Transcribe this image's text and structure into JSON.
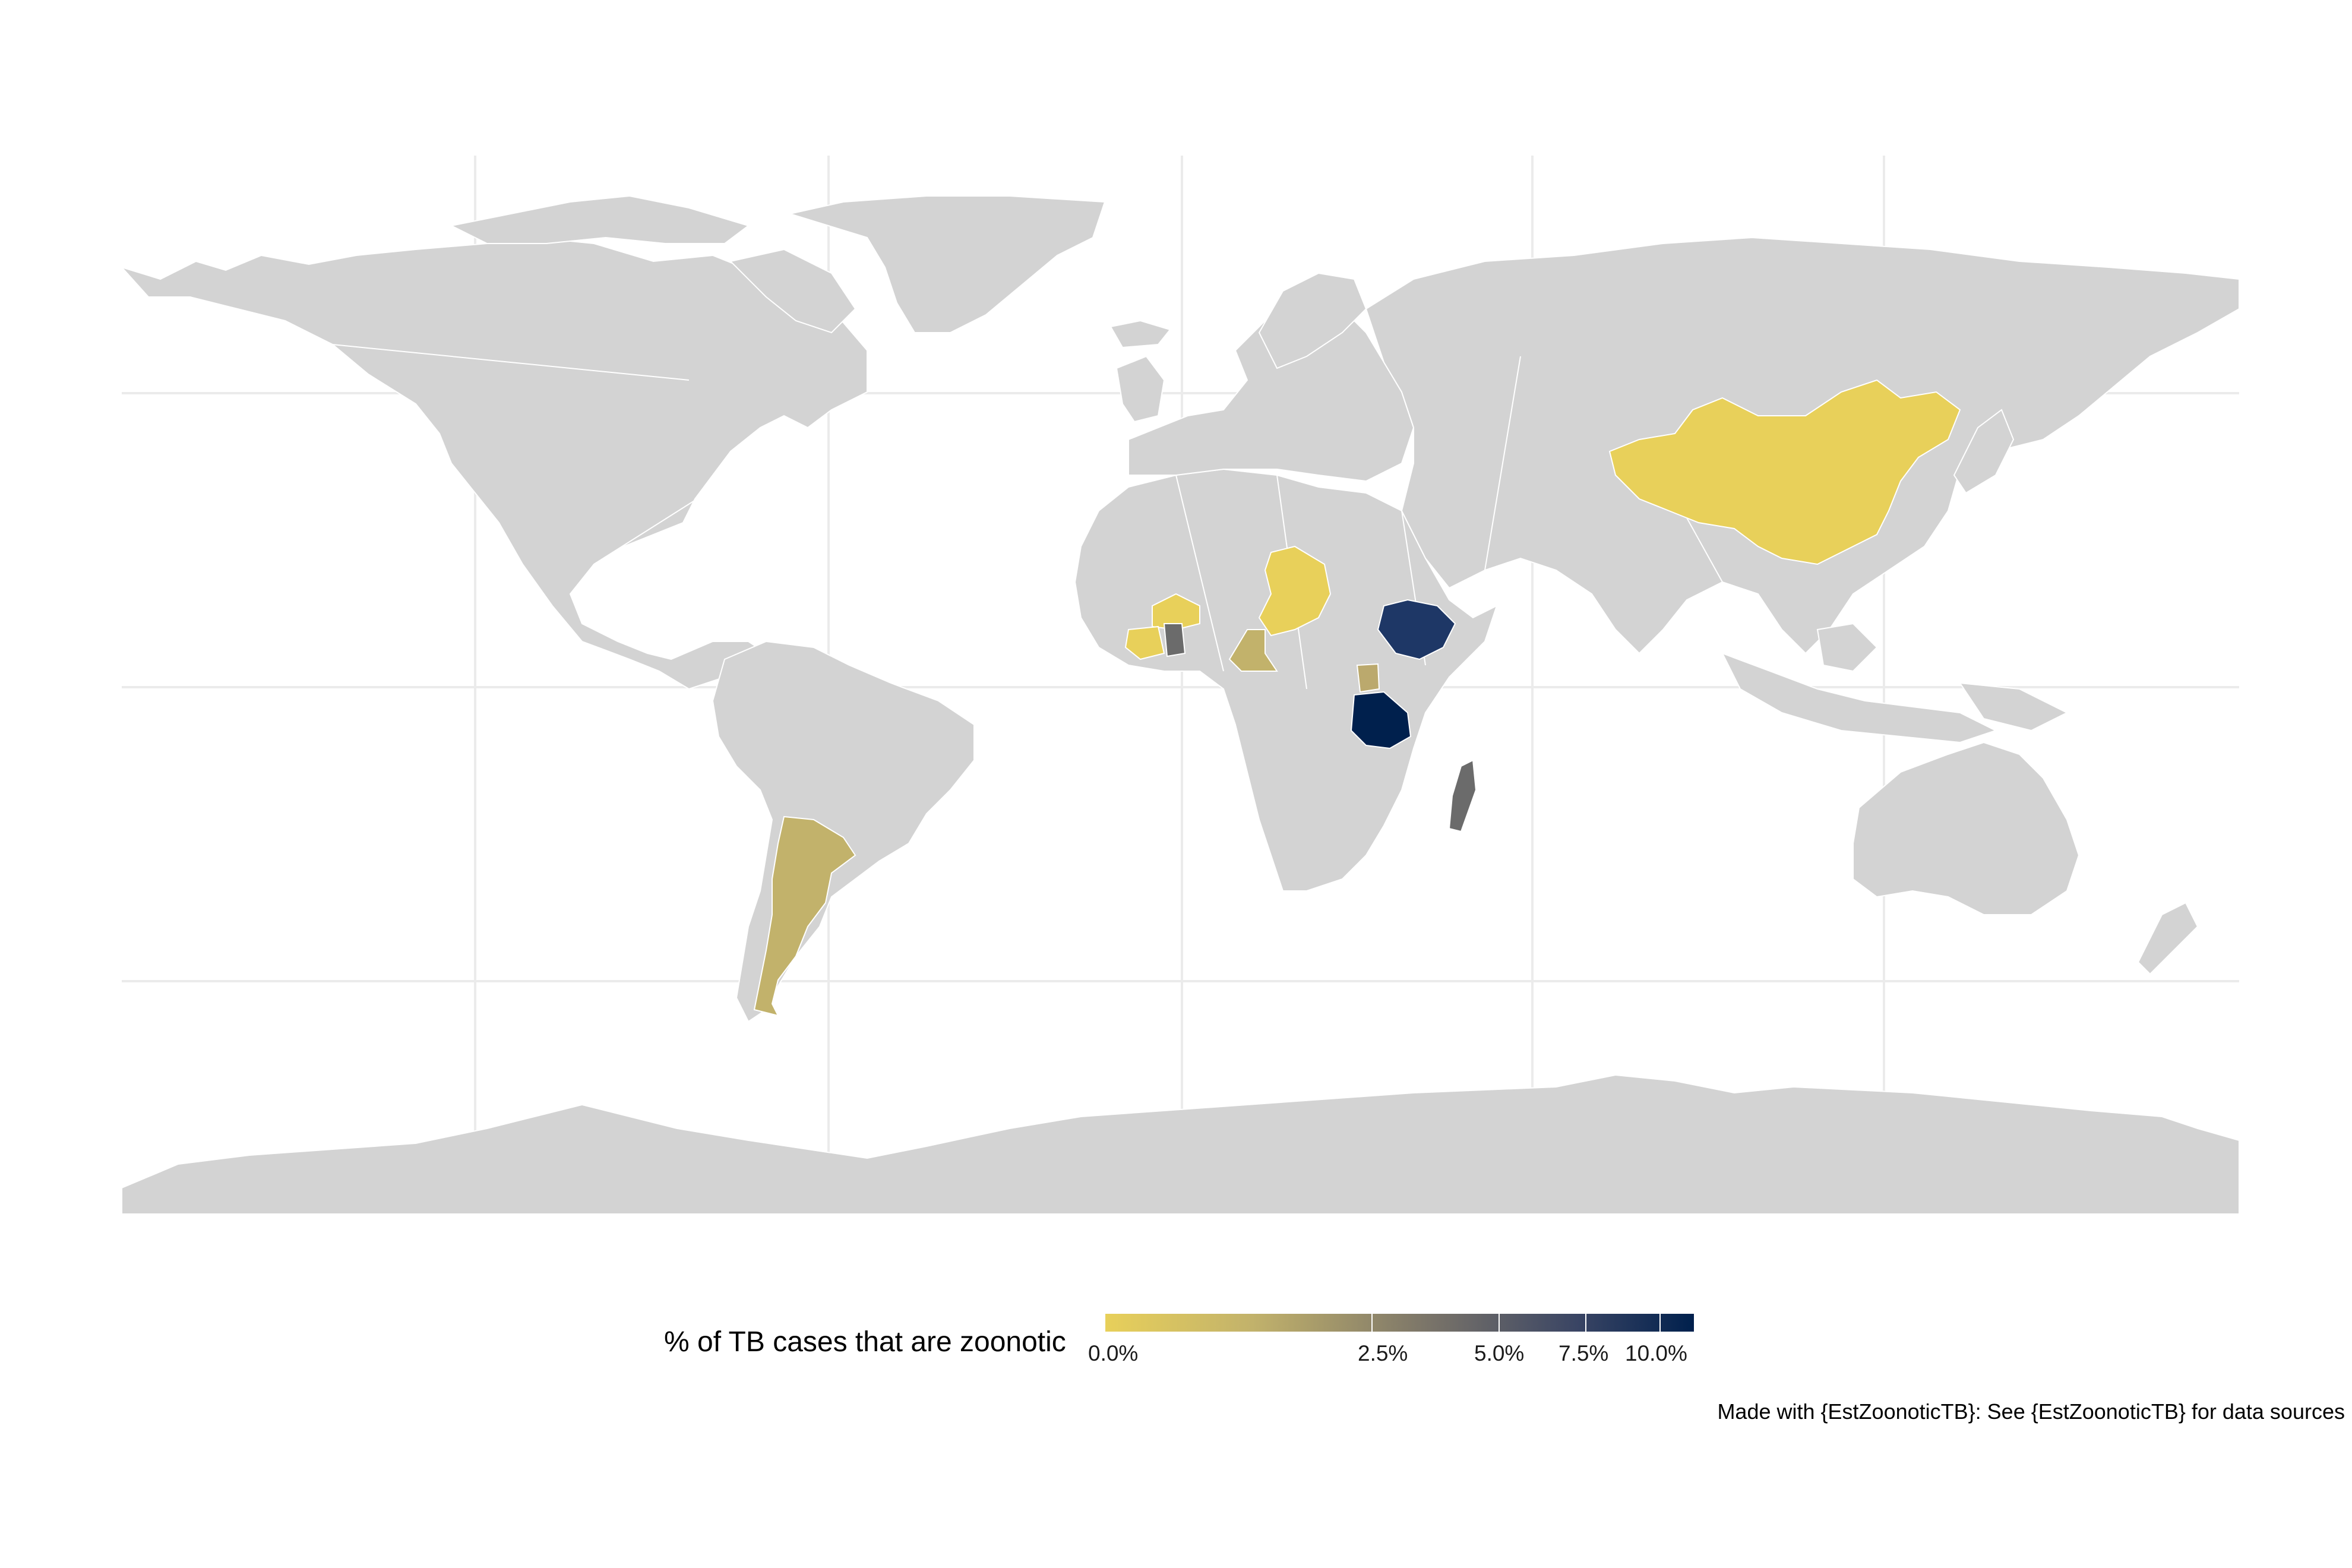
{
  "legend": {
    "title": "% of TB cases that are zoonotic",
    "low_color": "#e8d05a",
    "mid_color": "#6e6a62",
    "high_color": "#00204d",
    "na_color": "#6b6b6b",
    "ticks": [
      "0.0%",
      "2.5%",
      "5.0%",
      "7.5%",
      "10.0%"
    ]
  },
  "caption": "Made with {EstZoonoticTB}: See {EstZoonoticTB} for data sources",
  "colors": {
    "land": "#d3d3d3",
    "border": "#ffffff",
    "grid": "#ebebeb",
    "background": "#ffffff"
  },
  "highlighted_countries": [
    {
      "name": "Argentina",
      "color": "#c2b26b"
    },
    {
      "name": "China",
      "color": "#e8d05a"
    },
    {
      "name": "Chad",
      "color": "#e8d05a"
    },
    {
      "name": "Burkina Faso",
      "color": "#e8d05a"
    },
    {
      "name": "Côte d'Ivoire",
      "color": "#e8d05a"
    },
    {
      "name": "Ghana",
      "color": "#6b6b6b"
    },
    {
      "name": "Cameroon",
      "color": "#c2b26b"
    },
    {
      "name": "Ethiopia",
      "color": "#1e3766"
    },
    {
      "name": "Uganda",
      "color": "#bba96d"
    },
    {
      "name": "Tanzania",
      "color": "#00204d"
    },
    {
      "name": "Madagascar",
      "color": "#6b6b6b"
    }
  ]
}
